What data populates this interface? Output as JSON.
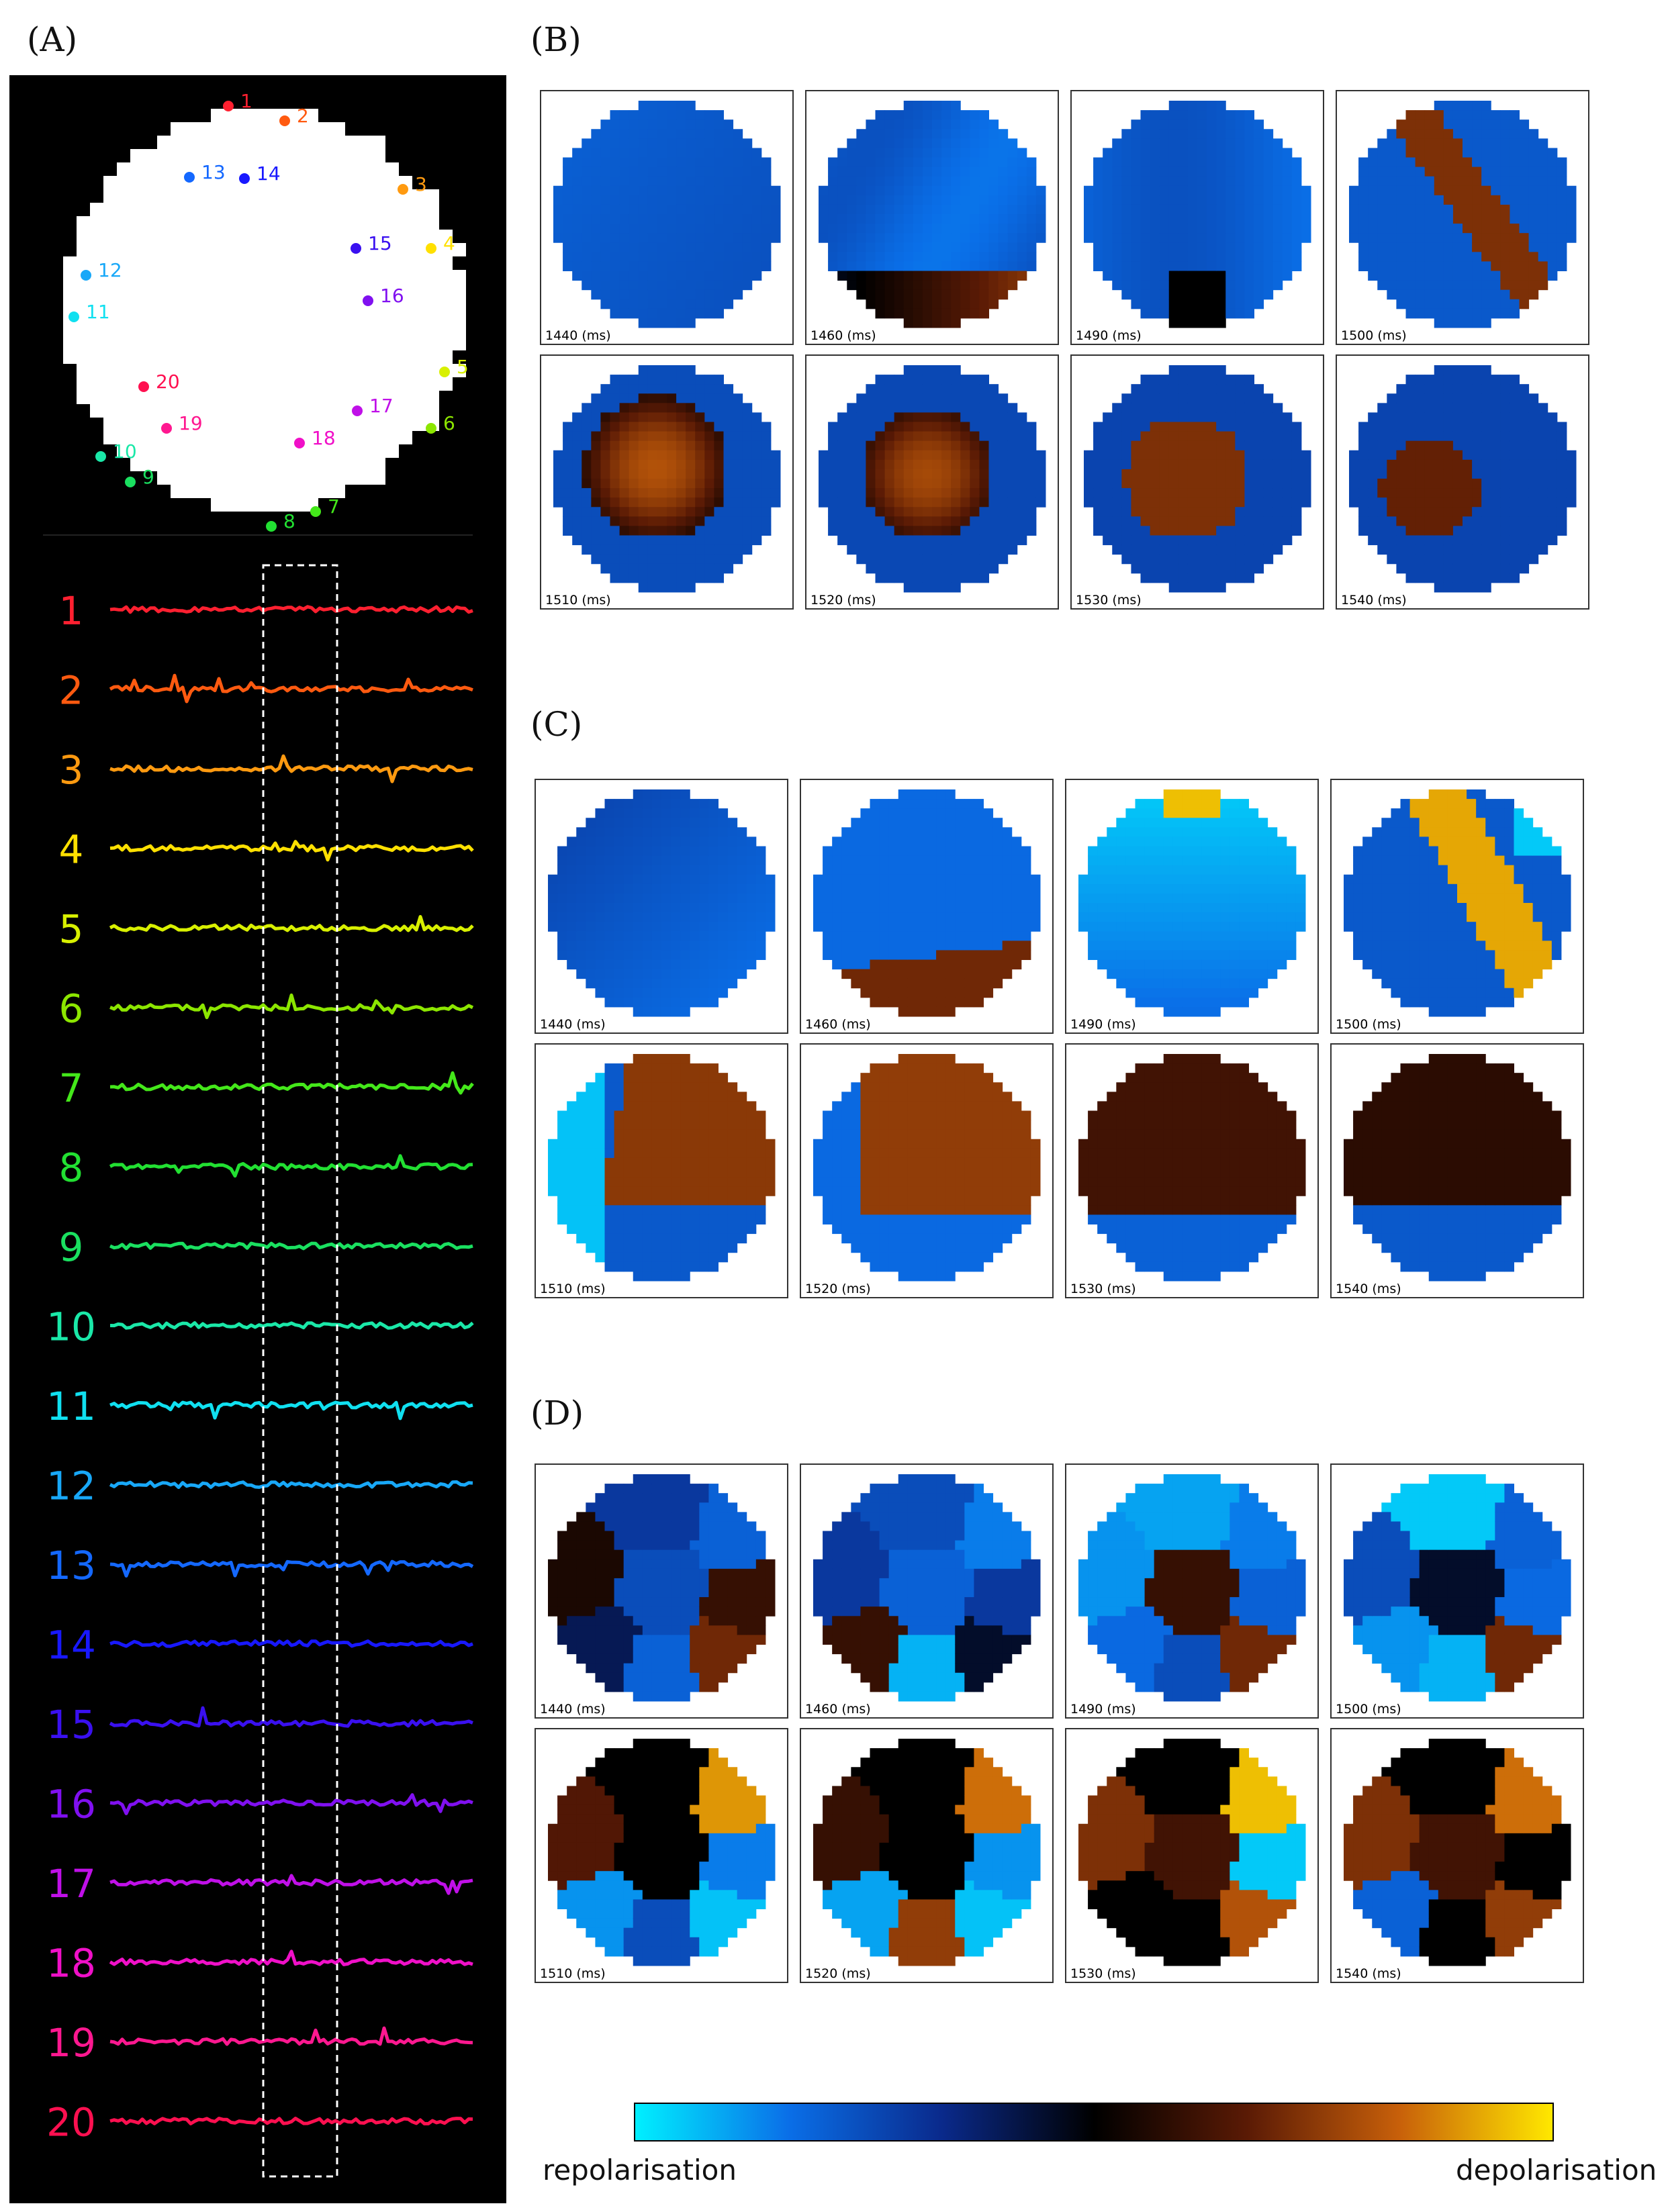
{
  "panels": {
    "A": "(A)",
    "B": "(B)",
    "C": "(C)",
    "D": "(D)"
  },
  "colorbar": {
    "left_label": "repolarisation",
    "right_label": "depolarisation",
    "stops": [
      "#00f0ff",
      "#0a6fe8",
      "#0a2a8c",
      "#000000",
      "#5a1a05",
      "#c8600a",
      "#ffe800"
    ]
  },
  "frames": [
    "1440 (ms)",
    "1460 (ms)",
    "1490 (ms)",
    "1500 (ms)",
    "1510 (ms)",
    "1520 (ms)",
    "1530 (ms)",
    "1540 (ms)"
  ],
  "electrodes": [
    {
      "id": "1",
      "color": "#ff2030"
    },
    {
      "id": "2",
      "color": "#ff5a10"
    },
    {
      "id": "3",
      "color": "#ff9a10"
    },
    {
      "id": "4",
      "color": "#ffe000"
    },
    {
      "id": "5",
      "color": "#d8f000"
    },
    {
      "id": "6",
      "color": "#8ce600"
    },
    {
      "id": "7",
      "color": "#44e81a"
    },
    {
      "id": "8",
      "color": "#22e032"
    },
    {
      "id": "9",
      "color": "#1ae060"
    },
    {
      "id": "10",
      "color": "#1ae8a8"
    },
    {
      "id": "11",
      "color": "#10e0f0"
    },
    {
      "id": "12",
      "color": "#18a8f8"
    },
    {
      "id": "13",
      "color": "#1468ff"
    },
    {
      "id": "14",
      "color": "#1818ff"
    },
    {
      "id": "15",
      "color": "#3a10f0"
    },
    {
      "id": "16",
      "color": "#8010f0"
    },
    {
      "id": "17",
      "color": "#c010e8"
    },
    {
      "id": "18",
      "color": "#f010c8"
    },
    {
      "id": "19",
      "color": "#ff1890"
    },
    {
      "id": "20",
      "color": "#ff1050"
    }
  ]
}
